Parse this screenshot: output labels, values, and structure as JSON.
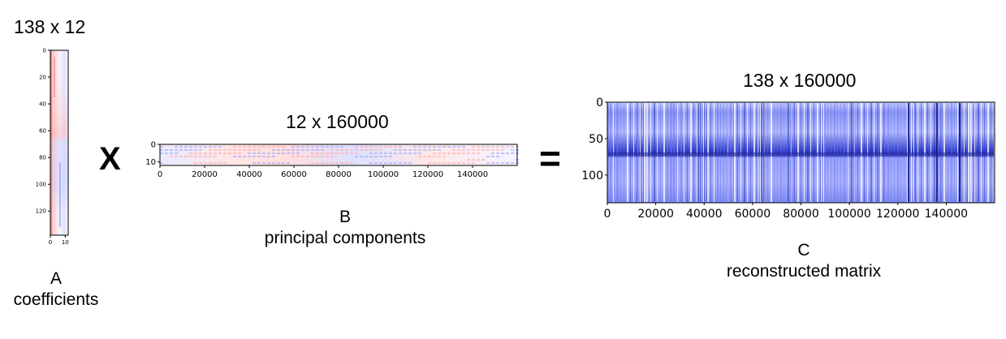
{
  "matrix_a": {
    "dimensions": "138 x 12",
    "letter": "A",
    "caption": "coefficients",
    "y_ticks": [
      "0",
      "20",
      "40",
      "60",
      "80",
      "100",
      "120"
    ],
    "x_ticks": [
      "0",
      "10"
    ]
  },
  "operator_multiply": "X",
  "matrix_b": {
    "dimensions": "12 x 160000",
    "letter": "B",
    "caption": "principal components",
    "y_ticks": [
      "0",
      "10"
    ],
    "x_ticks": [
      "0",
      "20000",
      "40000",
      "60000",
      "80000",
      "100000",
      "120000",
      "140000"
    ]
  },
  "operator_equals": "=",
  "matrix_c": {
    "dimensions": "138 x 160000",
    "letter": "C",
    "caption": "reconstructed matrix",
    "y_ticks": [
      "0",
      "50",
      "100"
    ],
    "x_ticks": [
      "0",
      "20000",
      "40000",
      "60000",
      "80000",
      "100000",
      "120000",
      "140000"
    ]
  },
  "colors": {
    "positive": "#ff7777",
    "negative": "#3344dd",
    "neutral": "#ffffff"
  }
}
